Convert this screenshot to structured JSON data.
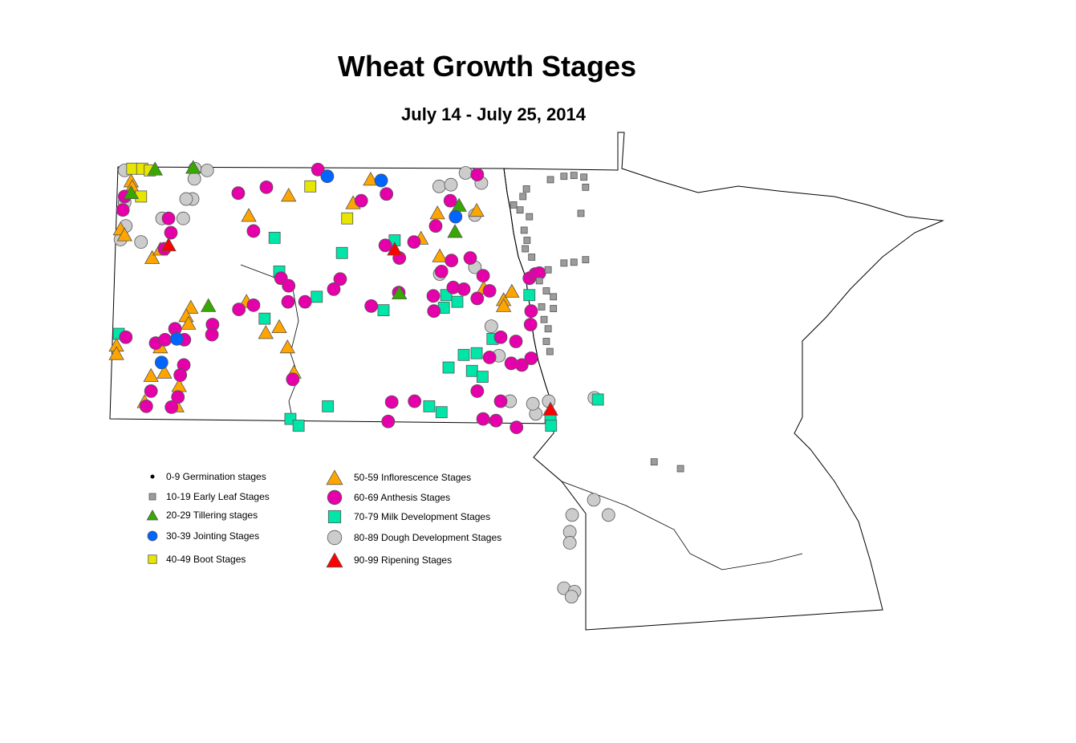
{
  "title": "Wheat Growth Stages",
  "subtitle": "July 14 - July 25, 2014",
  "legend": [
    {
      "id": "germination",
      "label": "0-9 Germination stages",
      "shape": "dot",
      "color": "#000000"
    },
    {
      "id": "early-leaf",
      "label": "10-19 Early Leaf Stages",
      "shape": "small-square",
      "color": "#9C9C9C"
    },
    {
      "id": "tillering",
      "label": "20-29 Tillering stages",
      "shape": "triangle",
      "color": "#38A800"
    },
    {
      "id": "jointing",
      "label": "30-39 Jointing Stages",
      "shape": "circle",
      "color": "#0064FF"
    },
    {
      "id": "boot",
      "label": "40-49 Boot Stages",
      "shape": "square",
      "color": "#E6E600"
    },
    {
      "id": "inflorescence",
      "label": "50-59 Inflorescence Stages",
      "shape": "triangle",
      "color": "#FFA500"
    },
    {
      "id": "anthesis",
      "label": "60-69 Anthesis Stages",
      "shape": "circle",
      "color": "#E600A9"
    },
    {
      "id": "milk",
      "label": "70-79 Milk Development Stages",
      "shape": "square",
      "color": "#00E6A9"
    },
    {
      "id": "dough",
      "label": "80-89 Dough Development Stages",
      "shape": "circle",
      "color": "#CCCCCC"
    },
    {
      "id": "ripening",
      "label": "90-99 Ripening Stages",
      "shape": "triangle",
      "color": "#FF0000"
    }
  ],
  "observations": {
    "germination": [],
    "early-leaf": [
      [
        -96.57,
        48.82
      ],
      [
        -96.34,
        48.86
      ],
      [
        -96.17,
        48.87
      ],
      [
        -96.0,
        48.85
      ],
      [
        -95.97,
        48.73
      ],
      [
        -97.04,
        48.62
      ],
      [
        -96.98,
        48.71
      ],
      [
        -97.2,
        48.52
      ],
      [
        -97.09,
        48.46
      ],
      [
        -96.93,
        48.38
      ],
      [
        -96.05,
        48.42
      ],
      [
        -97.02,
        48.22
      ],
      [
        -96.97,
        48.1
      ],
      [
        -97.0,
        48.0
      ],
      [
        -96.89,
        47.9
      ],
      [
        -96.61,
        47.75
      ],
      [
        -96.34,
        47.83
      ],
      [
        -96.17,
        47.84
      ],
      [
        -95.97,
        47.87
      ],
      [
        -96.76,
        47.62
      ],
      [
        -96.64,
        47.5
      ],
      [
        -96.52,
        47.43
      ],
      [
        -96.72,
        47.31
      ],
      [
        -96.52,
        47.29
      ],
      [
        -96.68,
        47.16
      ],
      [
        -96.61,
        47.05
      ],
      [
        -96.64,
        46.9
      ],
      [
        -96.58,
        46.78
      ],
      [
        -94.8,
        45.47
      ],
      [
        -94.35,
        45.39
      ]
    ],
    "tillering": [
      [
        -102.67,
        48.97
      ],
      [
        -103.32,
        48.95
      ],
      [
        -103.73,
        48.67
      ],
      [
        -102.41,
        47.33
      ],
      [
        -98.2,
        48.21
      ],
      [
        -98.13,
        48.52
      ],
      [
        -99.15,
        47.48
      ]
    ],
    "jointing": [
      [
        -100.38,
        48.86
      ],
      [
        -99.46,
        48.81
      ],
      [
        -98.19,
        48.38
      ],
      [
        -103.21,
        46.65
      ],
      [
        -102.95,
        46.93
      ]
    ],
    "boot": [
      [
        -103.71,
        48.95
      ],
      [
        -103.54,
        48.95
      ],
      [
        -103.41,
        48.93
      ],
      [
        -103.56,
        48.62
      ],
      [
        -100.67,
        48.74
      ],
      [
        -100.04,
        48.36
      ]
    ],
    "inflorescence": [
      [
        -103.73,
        48.81
      ],
      [
        -103.71,
        48.74
      ],
      [
        -103.91,
        48.24
      ],
      [
        -103.84,
        48.17
      ],
      [
        -103.37,
        47.9
      ],
      [
        -103.23,
        48.0
      ],
      [
        -101.72,
        48.4
      ],
      [
        -101.04,
        48.64
      ],
      [
        -99.94,
        48.55
      ],
      [
        -99.64,
        48.83
      ],
      [
        -98.5,
        48.43
      ],
      [
        -97.83,
        48.46
      ],
      [
        -98.78,
        48.13
      ],
      [
        -98.46,
        47.92
      ],
      [
        -102.71,
        47.31
      ],
      [
        -102.79,
        47.21
      ],
      [
        -102.75,
        47.12
      ],
      [
        -101.76,
        47.38
      ],
      [
        -101.2,
        47.08
      ],
      [
        -101.43,
        47.01
      ],
      [
        -101.06,
        46.84
      ],
      [
        -100.95,
        46.54
      ],
      [
        -103.23,
        46.84
      ],
      [
        -103.98,
        46.86
      ],
      [
        -103.98,
        46.76
      ],
      [
        -103.39,
        46.5
      ],
      [
        -103.16,
        46.54
      ],
      [
        -102.91,
        46.38
      ],
      [
        -103.5,
        46.19
      ],
      [
        -97.71,
        47.54
      ],
      [
        -97.37,
        47.4
      ],
      [
        -97.37,
        47.33
      ],
      [
        -97.23,
        47.5
      ],
      [
        -102.95,
        46.14
      ]
    ],
    "anthesis": [
      [
        -103.84,
        48.62
      ],
      [
        -103.87,
        48.46
      ],
      [
        -103.09,
        48.36
      ],
      [
        -103.05,
        48.19
      ],
      [
        -103.16,
        48.0
      ],
      [
        -101.9,
        48.66
      ],
      [
        -101.42,
        48.73
      ],
      [
        -101.64,
        48.21
      ],
      [
        -100.54,
        48.94
      ],
      [
        -99.8,
        48.57
      ],
      [
        -99.37,
        48.65
      ],
      [
        -98.28,
        48.57
      ],
      [
        -97.82,
        48.88
      ],
      [
        -98.53,
        48.27
      ],
      [
        -99.39,
        48.04
      ],
      [
        -98.9,
        48.08
      ],
      [
        -99.15,
        47.89
      ],
      [
        -97.94,
        47.89
      ],
      [
        -98.26,
        47.86
      ],
      [
        -98.43,
        47.73
      ],
      [
        -97.72,
        47.68
      ],
      [
        -101.17,
        47.65
      ],
      [
        -101.04,
        47.56
      ],
      [
        -100.16,
        47.64
      ],
      [
        -100.27,
        47.52
      ],
      [
        -100.76,
        47.37
      ],
      [
        -101.05,
        47.37
      ],
      [
        -99.63,
        47.32
      ],
      [
        -99.16,
        47.48
      ],
      [
        -98.57,
        47.44
      ],
      [
        -98.23,
        47.54
      ],
      [
        -98.05,
        47.52
      ],
      [
        -97.82,
        47.41
      ],
      [
        -97.61,
        47.5
      ],
      [
        -96.93,
        47.65
      ],
      [
        -96.83,
        47.7
      ],
      [
        -96.76,
        47.71
      ],
      [
        -98.56,
        47.26
      ],
      [
        -96.9,
        47.26
      ],
      [
        -96.91,
        47.1
      ],
      [
        -97.16,
        46.9
      ],
      [
        -97.42,
        46.95
      ],
      [
        -97.61,
        46.71
      ],
      [
        -97.24,
        46.64
      ],
      [
        -97.06,
        46.62
      ],
      [
        -96.9,
        46.7
      ],
      [
        -101.89,
        47.28
      ],
      [
        -101.64,
        47.33
      ],
      [
        -102.34,
        47.1
      ],
      [
        -102.35,
        46.98
      ],
      [
        -102.98,
        47.05
      ],
      [
        -102.82,
        46.92
      ],
      [
        -103.31,
        46.88
      ],
      [
        -103.15,
        46.92
      ],
      [
        -102.83,
        46.62
      ],
      [
        -102.89,
        46.5
      ],
      [
        -103.39,
        46.31
      ],
      [
        -102.93,
        46.24
      ],
      [
        -103.04,
        46.12
      ],
      [
        -103.47,
        46.13
      ],
      [
        -103.82,
        46.95
      ],
      [
        -100.97,
        46.45
      ],
      [
        -99.28,
        46.18
      ],
      [
        -99.34,
        45.95
      ],
      [
        -98.89,
        46.19
      ],
      [
        -97.82,
        46.31
      ],
      [
        -97.42,
        46.19
      ],
      [
        -97.72,
        45.98
      ],
      [
        -97.5,
        45.96
      ],
      [
        -97.15,
        45.88
      ]
    ],
    "milk": [
      [
        -101.28,
        48.13
      ],
      [
        -100.13,
        47.95
      ],
      [
        -99.23,
        48.1
      ],
      [
        -101.2,
        47.73
      ],
      [
        -100.56,
        47.43
      ],
      [
        -101.45,
        47.17
      ],
      [
        -99.42,
        47.27
      ],
      [
        -98.35,
        47.45
      ],
      [
        -98.16,
        47.37
      ],
      [
        -98.39,
        47.3
      ],
      [
        -96.93,
        47.45
      ],
      [
        -103.94,
        46.99
      ],
      [
        -97.56,
        46.93
      ],
      [
        -98.05,
        46.74
      ],
      [
        -97.83,
        46.76
      ],
      [
        -98.31,
        46.59
      ],
      [
        -97.91,
        46.55
      ],
      [
        -97.73,
        46.48
      ],
      [
        -100.37,
        46.13
      ],
      [
        -98.64,
        46.13
      ],
      [
        -98.43,
        46.06
      ],
      [
        -101.01,
        45.98
      ],
      [
        -100.87,
        45.9
      ],
      [
        -96.57,
        46.0
      ],
      [
        -96.56,
        45.9
      ],
      [
        -95.76,
        46.21
      ]
    ],
    "dough": [
      [
        -103.84,
        48.93
      ],
      [
        -102.64,
        48.95
      ],
      [
        -102.43,
        48.93
      ],
      [
        -102.65,
        48.83
      ],
      [
        -102.68,
        48.59
      ],
      [
        -102.79,
        48.59
      ],
      [
        -103.84,
        48.55
      ],
      [
        -103.82,
        48.27
      ],
      [
        -103.91,
        48.11
      ],
      [
        -103.56,
        48.08
      ],
      [
        -103.2,
        48.36
      ],
      [
        -102.84,
        48.36
      ],
      [
        -98.47,
        48.74
      ],
      [
        -98.27,
        48.76
      ],
      [
        -98.02,
        48.9
      ],
      [
        -97.75,
        48.78
      ],
      [
        -97.86,
        48.4
      ],
      [
        -97.86,
        47.78
      ],
      [
        -98.46,
        47.7
      ],
      [
        -97.58,
        47.08
      ],
      [
        -97.45,
        46.73
      ],
      [
        -97.26,
        46.19
      ],
      [
        -96.82,
        46.04
      ],
      [
        -96.87,
        46.16
      ],
      [
        -96.6,
        46.19
      ],
      [
        -95.82,
        46.23
      ],
      [
        -95.83,
        45.02
      ],
      [
        -96.2,
        44.84
      ],
      [
        -95.58,
        44.84
      ],
      [
        -96.24,
        44.64
      ],
      [
        -96.24,
        44.51
      ],
      [
        -96.34,
        43.97
      ],
      [
        -96.16,
        43.93
      ],
      [
        -96.21,
        43.87
      ]
    ],
    "ripening": [
      [
        -99.23,
        48.0
      ],
      [
        -103.09,
        48.05
      ],
      [
        -96.57,
        46.1
      ]
    ]
  }
}
